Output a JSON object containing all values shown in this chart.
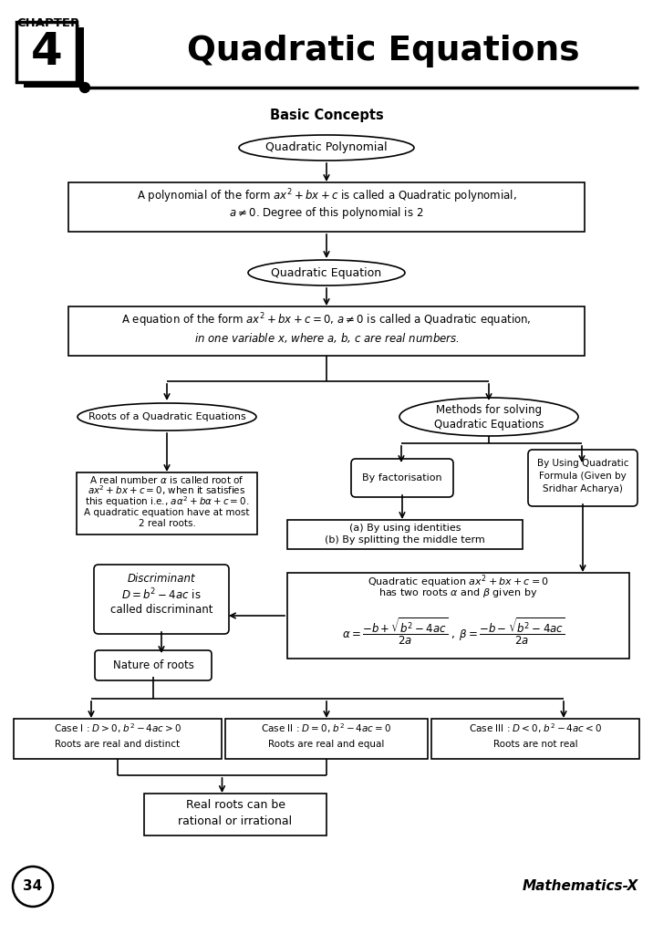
{
  "title": "Quadratic Equations",
  "chapter": "4",
  "chapter_label": "CHAPTER",
  "subtitle": "Basic Concepts",
  "page_number": "34",
  "footer": "Mathematics-X",
  "bg_color": "#ffffff",
  "box_color": "#000000",
  "text_color": "#000000"
}
